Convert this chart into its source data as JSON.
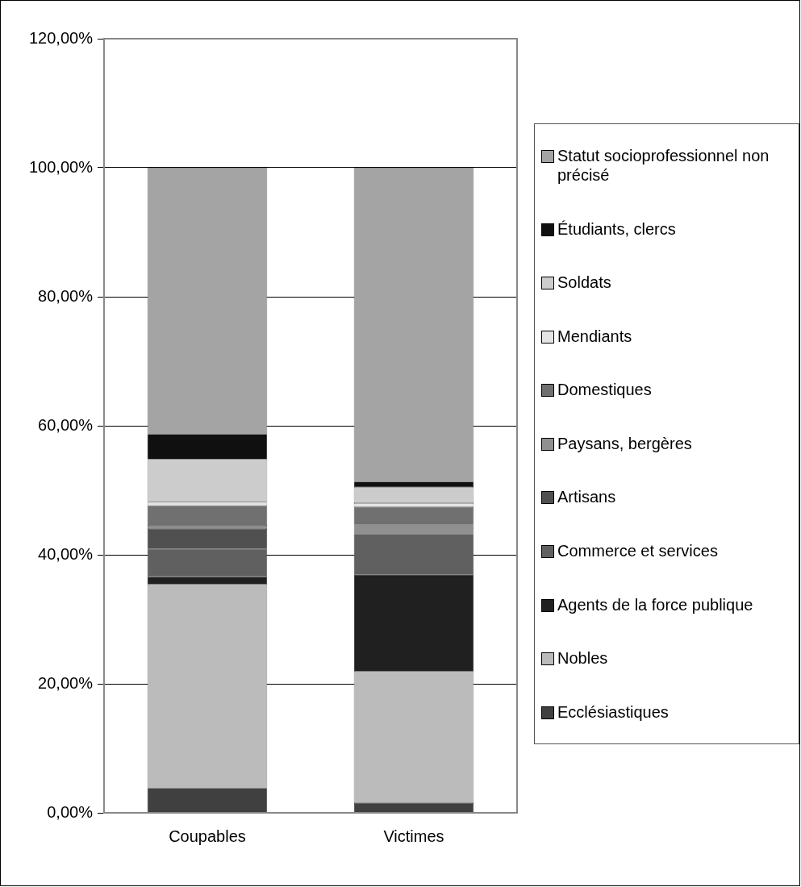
{
  "chart_data": {
    "type": "bar",
    "stacked": true,
    "categories": [
      "Coupables",
      "Victimes"
    ],
    "series": [
      {
        "name": "Ecclésiastiques",
        "color": "#404040",
        "values": [
          3.8,
          1.5
        ]
      },
      {
        "name": "Nobles",
        "color": "#bbbbbb",
        "values": [
          31.6,
          20.4
        ]
      },
      {
        "name": "Agents de la force publique",
        "color": "#202020",
        "values": [
          1.2,
          15.0
        ]
      },
      {
        "name": "Commerce et services",
        "color": "#606060",
        "values": [
          4.3,
          6.3
        ]
      },
      {
        "name": "Artisans",
        "color": "#505050",
        "values": [
          3.1,
          0
        ]
      },
      {
        "name": "Paysans, bergères",
        "color": "#909090",
        "values": [
          0.5,
          1.5
        ]
      },
      {
        "name": "Domestiques",
        "color": "#707070",
        "values": [
          3.1,
          2.7
        ]
      },
      {
        "name": "Mendiants",
        "color": "#e4e4e4",
        "values": [
          0.6,
          0.6
        ]
      },
      {
        "name": "Soldats",
        "color": "#cccccc",
        "values": [
          6.6,
          2.5
        ]
      },
      {
        "name": "Étudiants, clercs",
        "color": "#101010",
        "values": [
          3.9,
          0.8
        ]
      },
      {
        "name": "Statut socioprofessionnel non précisé",
        "color": "#a4a4a4",
        "values": [
          41.3,
          48.7
        ]
      }
    ],
    "ylim": [
      0,
      120
    ],
    "yticks": [
      {
        "value": 0,
        "label": "0,00%"
      },
      {
        "value": 20,
        "label": "20,00%"
      },
      {
        "value": 40,
        "label": "40,00%"
      },
      {
        "value": 60,
        "label": "60,00%"
      },
      {
        "value": 80,
        "label": "80,00%"
      },
      {
        "value": 100,
        "label": "100,00%"
      },
      {
        "value": 120,
        "label": "120,00%"
      }
    ],
    "grid": "y",
    "legend": "right"
  }
}
